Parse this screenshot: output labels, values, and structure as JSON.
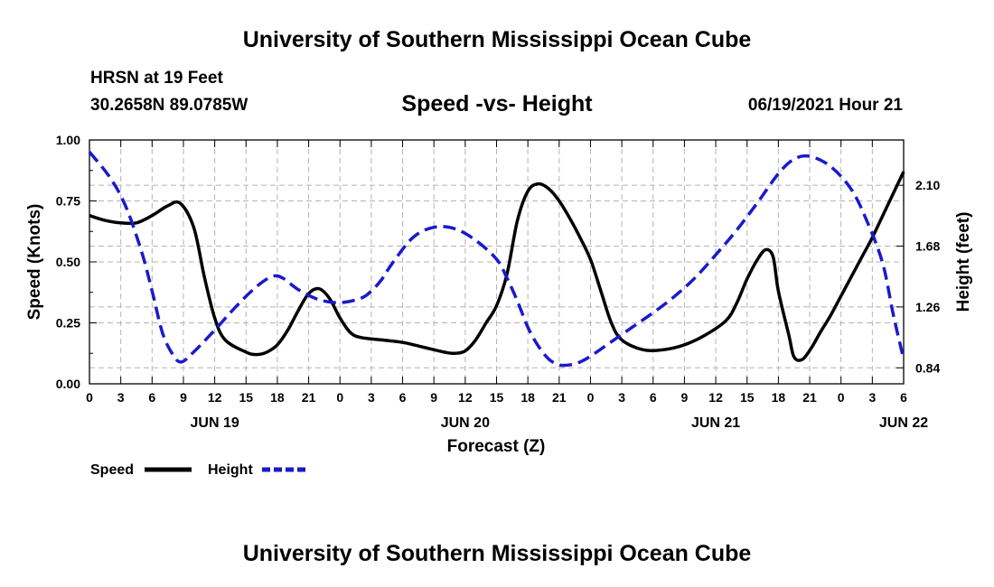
{
  "header": {
    "title": "University of Southern Mississippi Ocean Cube",
    "station": "HRSN at 19 Feet",
    "coordinates": "30.2658N  89.0785W",
    "subtitle": "Speed -vs- Height",
    "datetime": "06/19/2021 Hour 21"
  },
  "footer": {
    "title": "University of Southern Mississippi Ocean Cube"
  },
  "legend": {
    "speed_label": "Speed",
    "height_label": "Height"
  },
  "colors": {
    "speed": "#000000",
    "height": "#1a1acc",
    "grid": "#b4b4b4"
  },
  "chart_data": {
    "type": "line",
    "title": "Speed -vs- Height",
    "xlabel": "Forecast (Z)",
    "ylabel": "Speed (Knots)",
    "y2label": "Height (feet)",
    "xlim": [
      0,
      78
    ],
    "ylim": [
      0,
      1.0
    ],
    "y2lim": [
      0.7295,
      2.4126
    ],
    "x_tick_labels": [
      "0",
      "3",
      "6",
      "9",
      "12",
      "15",
      "18",
      "21",
      "0",
      "3",
      "6",
      "9",
      "12",
      "15",
      "18",
      "21",
      "0",
      "3",
      "6",
      "9",
      "12",
      "15",
      "18",
      "21",
      "0",
      "3",
      "6"
    ],
    "date_labels": [
      {
        "label": "JUN 19",
        "x": 12
      },
      {
        "label": "JUN 20",
        "x": 36
      },
      {
        "label": "JUN 21",
        "x": 60
      },
      {
        "label": "JUN 22",
        "x": 78
      }
    ],
    "y_ticks": [
      0.0,
      0.25,
      0.5,
      0.75,
      1.0
    ],
    "y_tick_labels": [
      "0.00",
      "0.25",
      "0.50",
      "0.75",
      "1.00"
    ],
    "y2_ticks": [
      0.84,
      1.26,
      1.68,
      2.1
    ],
    "y2_tick_labels": [
      "0.84",
      "1.26",
      "1.68",
      "2.10"
    ],
    "grid": true,
    "series": [
      {
        "name": "Speed",
        "axis": "left",
        "style": "solid",
        "points": [
          [
            0,
            0.69
          ],
          [
            1.5,
            0.67
          ],
          [
            3,
            0.66
          ],
          [
            4.5,
            0.66
          ],
          [
            6,
            0.69
          ],
          [
            7.5,
            0.73
          ],
          [
            8.7,
            0.74
          ],
          [
            10,
            0.64
          ],
          [
            11,
            0.44
          ],
          [
            12,
            0.27
          ],
          [
            13,
            0.18
          ],
          [
            15,
            0.13
          ],
          [
            16,
            0.12
          ],
          [
            17,
            0.13
          ],
          [
            18,
            0.16
          ],
          [
            19,
            0.22
          ],
          [
            20,
            0.3
          ],
          [
            21,
            0.37
          ],
          [
            22,
            0.39
          ],
          [
            23,
            0.35
          ],
          [
            24,
            0.27
          ],
          [
            25,
            0.21
          ],
          [
            26,
            0.19
          ],
          [
            28,
            0.18
          ],
          [
            30,
            0.17
          ],
          [
            32,
            0.15
          ],
          [
            34,
            0.13
          ],
          [
            35,
            0.125
          ],
          [
            36,
            0.135
          ],
          [
            37,
            0.18
          ],
          [
            38,
            0.25
          ],
          [
            39,
            0.32
          ],
          [
            40,
            0.45
          ],
          [
            41,
            0.67
          ],
          [
            42,
            0.79
          ],
          [
            43,
            0.82
          ],
          [
            44,
            0.8
          ],
          [
            45,
            0.75
          ],
          [
            46,
            0.68
          ],
          [
            47,
            0.6
          ],
          [
            48,
            0.51
          ],
          [
            49,
            0.38
          ],
          [
            50,
            0.25
          ],
          [
            51,
            0.18
          ],
          [
            53,
            0.14
          ],
          [
            55,
            0.14
          ],
          [
            57,
            0.16
          ],
          [
            59,
            0.2
          ],
          [
            61,
            0.26
          ],
          [
            62,
            0.33
          ],
          [
            63,
            0.43
          ],
          [
            64,
            0.51
          ],
          [
            64.8,
            0.55
          ],
          [
            65.5,
            0.52
          ],
          [
            66,
            0.38
          ],
          [
            67,
            0.2
          ],
          [
            67.5,
            0.11
          ],
          [
            68.3,
            0.1
          ],
          [
            69.2,
            0.15
          ],
          [
            70,
            0.21
          ],
          [
            71,
            0.28
          ],
          [
            72,
            0.36
          ],
          [
            73,
            0.44
          ],
          [
            74,
            0.52
          ],
          [
            75,
            0.6
          ],
          [
            76,
            0.69
          ],
          [
            77,
            0.78
          ],
          [
            78,
            0.87
          ]
        ]
      },
      {
        "name": "Height",
        "axis": "right",
        "style": "dashed",
        "points": [
          [
            0,
            2.33
          ],
          [
            2,
            2.15
          ],
          [
            3.5,
            1.95
          ],
          [
            5,
            1.64
          ],
          [
            6,
            1.37
          ],
          [
            7,
            1.08
          ],
          [
            8,
            0.93
          ],
          [
            8.8,
            0.88
          ],
          [
            10,
            0.95
          ],
          [
            12,
            1.1
          ],
          [
            14,
            1.26
          ],
          [
            16,
            1.4
          ],
          [
            17.5,
            1.47
          ],
          [
            18.5,
            1.46
          ],
          [
            20,
            1.38
          ],
          [
            22,
            1.31
          ],
          [
            24,
            1.29
          ],
          [
            26,
            1.32
          ],
          [
            27,
            1.37
          ],
          [
            28,
            1.45
          ],
          [
            29,
            1.56
          ],
          [
            31,
            1.74
          ],
          [
            33,
            1.81
          ],
          [
            35,
            1.8
          ],
          [
            37,
            1.72
          ],
          [
            39,
            1.59
          ],
          [
            40,
            1.46
          ],
          [
            41,
            1.3
          ],
          [
            42,
            1.12
          ],
          [
            43,
            0.99
          ],
          [
            44,
            0.9
          ],
          [
            45,
            0.86
          ],
          [
            46,
            0.86
          ],
          [
            47,
            0.88
          ],
          [
            48,
            0.92
          ],
          [
            50,
            1.02
          ],
          [
            52,
            1.12
          ],
          [
            54,
            1.22
          ],
          [
            56,
            1.33
          ],
          [
            58,
            1.46
          ],
          [
            60,
            1.62
          ],
          [
            62,
            1.79
          ],
          [
            64,
            1.98
          ],
          [
            66,
            2.18
          ],
          [
            67.5,
            2.28
          ],
          [
            69,
            2.3
          ],
          [
            71,
            2.23
          ],
          [
            73,
            2.07
          ],
          [
            74.5,
            1.85
          ],
          [
            76,
            1.56
          ],
          [
            77,
            1.21
          ],
          [
            78,
            0.9
          ]
        ]
      }
    ]
  }
}
